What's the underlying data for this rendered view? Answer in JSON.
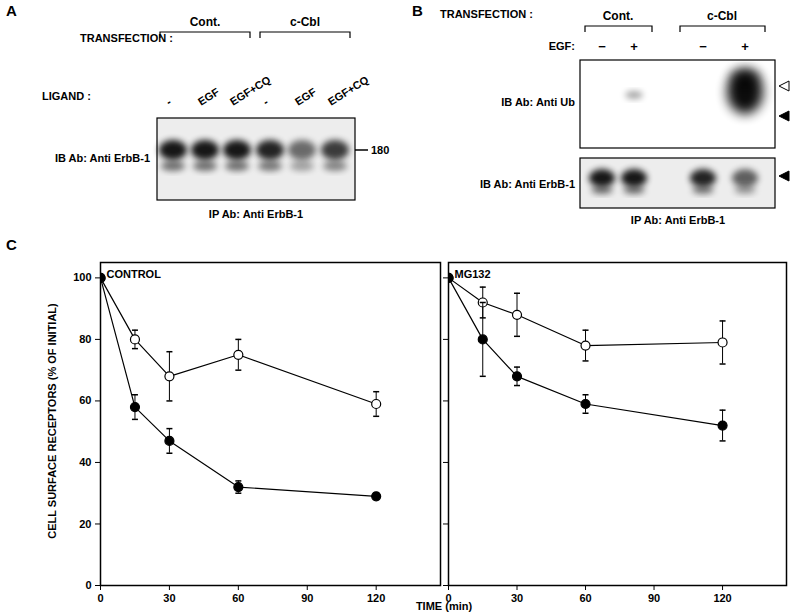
{
  "figure": {
    "A": {
      "label": "A",
      "transfection_label": "TRANSFECTION :",
      "groups": [
        "Cont.",
        "c-Cbl"
      ],
      "ligand_label": "LIGAND :",
      "lanes": [
        "-",
        "EGF",
        "EGF+CQ",
        "-",
        "EGF",
        "EGF+CQ"
      ],
      "blot_label": "IB Ab: Anti ErbB-1",
      "size_marker": 180,
      "ip_label": "IP Ab: Anti ErbB-1"
    },
    "B": {
      "label": "B",
      "transfection_label": "TRANSFECTION :",
      "groups": [
        "Cont.",
        "c-Cbl"
      ],
      "egf_label": "EGF:",
      "lanes": [
        "−",
        "+",
        "−",
        "+"
      ],
      "blots": [
        "IB Ab: Anti Ub",
        "IB Ab: Anti ErbB-1"
      ],
      "ip_label": "IP Ab: Anti ErbB-1"
    },
    "C": {
      "label": "C",
      "xlabel": "TIME (min)",
      "ylabel": "CELL SURFACE RECEPTORS (% OF INITIAL)"
    }
  },
  "chart_data": [
    {
      "type": "line",
      "title": "CONTROL",
      "x": [
        0,
        15,
        30,
        60,
        120
      ],
      "xlim": [
        0,
        148
      ],
      "xticks": [
        0,
        30,
        60,
        90,
        120
      ],
      "ylim": [
        0,
        105
      ],
      "yticks": [
        0,
        20,
        40,
        60,
        80,
        100
      ],
      "series": [
        {
          "color": "#000000",
          "marker": "open circle",
          "values": [
            100,
            80,
            68,
            75,
            59
          ],
          "errors": [
            0,
            3,
            8,
            5,
            4
          ]
        },
        {
          "color": "#000000",
          "marker": "filled circle",
          "values": [
            100,
            58,
            47,
            32,
            29
          ],
          "errors": [
            0,
            4,
            4,
            2,
            1
          ]
        }
      ]
    },
    {
      "type": "line",
      "title": "MG132",
      "x": [
        0,
        15,
        30,
        60,
        120
      ],
      "xlim": [
        0,
        148
      ],
      "xticks": [
        0,
        30,
        60,
        90,
        120
      ],
      "ylim": [
        0,
        105
      ],
      "yticks": [
        0,
        20,
        40,
        60,
        80,
        100
      ],
      "tick_labels": "x",
      "series": [
        {
          "color": "#000000",
          "marker": "open circle",
          "values": [
            100,
            92,
            88,
            78,
            79
          ],
          "errors": [
            0,
            5,
            7,
            5,
            7
          ]
        },
        {
          "color": "#000000",
          "marker": "filled circle",
          "values": [
            100,
            80,
            68,
            59,
            52
          ],
          "errors": [
            0,
            12,
            3,
            3,
            5
          ]
        }
      ]
    }
  ]
}
